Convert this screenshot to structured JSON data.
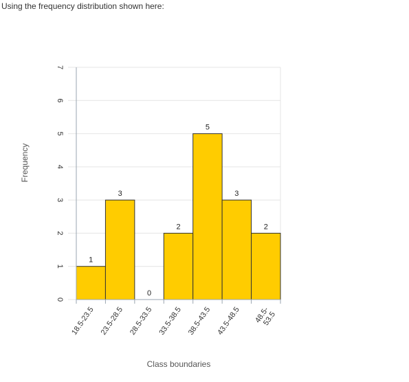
{
  "prompt": "Using the frequency distribution shown here:",
  "chart_data": {
    "type": "bar",
    "title": "",
    "xlabel": "Class boundaries",
    "ylabel": "Frequency",
    "categories": [
      "18.5-23.5",
      "23.5-28.5",
      "28.5-33.5",
      "33.5-38.5",
      "38.5-43.5",
      "43.5-48.5",
      "48.5-\n53.5"
    ],
    "values": [
      1,
      3,
      0,
      2,
      5,
      3,
      2
    ],
    "ylim": [
      0,
      7
    ],
    "yticks": [
      0,
      1,
      2,
      3,
      4,
      5,
      6,
      7
    ],
    "grid": true,
    "bar_color": "#FFCC00",
    "bar_edge_color": "#333333"
  }
}
